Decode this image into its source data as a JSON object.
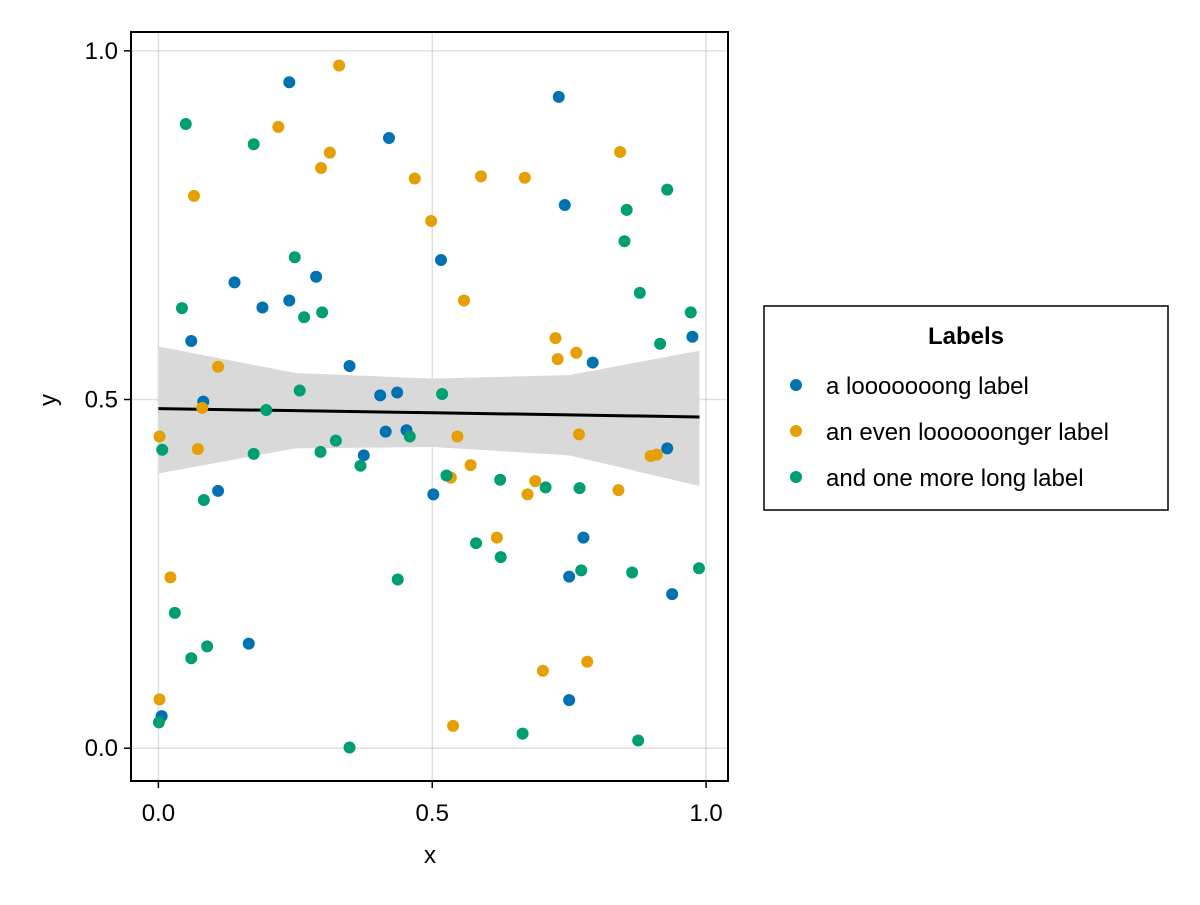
{
  "chart_data": {
    "type": "scatter",
    "xlabel": "x",
    "ylabel": "y",
    "xlim": [
      -0.05,
      1.04
    ],
    "ylim": [
      -0.047,
      1.027
    ],
    "x_ticks": [
      0.0,
      0.5,
      1.0
    ],
    "y_ticks": [
      0.0,
      0.5,
      1.0
    ],
    "x_tick_labels": [
      "0.0",
      "0.5",
      "1.0"
    ],
    "y_tick_labels": [
      "0.0",
      "0.5",
      "1.0"
    ],
    "grid": true,
    "legend": {
      "title": "Labels",
      "placement": "right",
      "entries": [
        "a looooooong label",
        "an even loooooonger label",
        "and one more long label"
      ]
    },
    "series": [
      {
        "name": "a looooooong label",
        "color": "#0072b2",
        "points": [
          [
            0.239,
            0.955
          ],
          [
            0.731,
            0.934
          ],
          [
            0.421,
            0.875
          ],
          [
            0.742,
            0.779
          ],
          [
            0.516,
            0.7
          ],
          [
            0.288,
            0.676
          ],
          [
            0.139,
            0.668
          ],
          [
            0.239,
            0.642
          ],
          [
            0.19,
            0.632
          ],
          [
            0.06,
            0.584
          ],
          [
            0.975,
            0.59
          ],
          [
            0.793,
            0.553
          ],
          [
            0.349,
            0.548
          ],
          [
            0.436,
            0.51
          ],
          [
            0.405,
            0.506
          ],
          [
            0.082,
            0.497
          ],
          [
            0.415,
            0.454
          ],
          [
            0.453,
            0.456
          ],
          [
            0.375,
            0.42
          ],
          [
            0.929,
            0.43
          ],
          [
            0.109,
            0.369
          ],
          [
            0.502,
            0.364
          ],
          [
            0.776,
            0.302
          ],
          [
            0.75,
            0.246
          ],
          [
            0.938,
            0.221
          ],
          [
            0.165,
            0.15
          ],
          [
            0.75,
            0.069
          ],
          [
            0.006,
            0.046
          ]
        ]
      },
      {
        "name": "an even loooooonger label",
        "color": "#e69f00",
        "points": [
          [
            0.33,
            0.979
          ],
          [
            0.219,
            0.891
          ],
          [
            0.313,
            0.854
          ],
          [
            0.297,
            0.832
          ],
          [
            0.468,
            0.817
          ],
          [
            0.589,
            0.82
          ],
          [
            0.669,
            0.818
          ],
          [
            0.843,
            0.855
          ],
          [
            0.065,
            0.792
          ],
          [
            0.498,
            0.756
          ],
          [
            0.558,
            0.642
          ],
          [
            0.725,
            0.588
          ],
          [
            0.729,
            0.558
          ],
          [
            0.763,
            0.567
          ],
          [
            0.109,
            0.547
          ],
          [
            0.08,
            0.488
          ],
          [
            0.002,
            0.447
          ],
          [
            0.072,
            0.429
          ],
          [
            0.546,
            0.447
          ],
          [
            0.768,
            0.45
          ],
          [
            0.57,
            0.406
          ],
          [
            0.899,
            0.419
          ],
          [
            0.91,
            0.421
          ],
          [
            0.534,
            0.388
          ],
          [
            0.688,
            0.383
          ],
          [
            0.674,
            0.364
          ],
          [
            0.84,
            0.37
          ],
          [
            0.618,
            0.302
          ],
          [
            0.022,
            0.245
          ],
          [
            0.702,
            0.111
          ],
          [
            0.783,
            0.124
          ],
          [
            0.002,
            0.07
          ],
          [
            0.538,
            0.032
          ]
        ]
      },
      {
        "name": "and one more long label",
        "color": "#009e73",
        "points": [
          [
            0.05,
            0.895
          ],
          [
            0.174,
            0.866
          ],
          [
            0.929,
            0.801
          ],
          [
            0.855,
            0.772
          ],
          [
            0.851,
            0.727
          ],
          [
            0.249,
            0.704
          ],
          [
            0.879,
            0.653
          ],
          [
            0.043,
            0.631
          ],
          [
            0.299,
            0.625
          ],
          [
            0.266,
            0.618
          ],
          [
            0.972,
            0.625
          ],
          [
            0.916,
            0.58
          ],
          [
            0.258,
            0.513
          ],
          [
            0.518,
            0.508
          ],
          [
            0.197,
            0.485
          ],
          [
            0.007,
            0.428
          ],
          [
            0.324,
            0.441
          ],
          [
            0.459,
            0.447
          ],
          [
            0.296,
            0.425
          ],
          [
            0.174,
            0.422
          ],
          [
            0.369,
            0.405
          ],
          [
            0.526,
            0.391
          ],
          [
            0.624,
            0.385
          ],
          [
            0.707,
            0.374
          ],
          [
            0.769,
            0.373
          ],
          [
            0.083,
            0.356
          ],
          [
            0.58,
            0.294
          ],
          [
            0.625,
            0.274
          ],
          [
            0.772,
            0.255
          ],
          [
            0.865,
            0.252
          ],
          [
            0.987,
            0.258
          ],
          [
            0.437,
            0.242
          ],
          [
            0.03,
            0.194
          ],
          [
            0.089,
            0.146
          ],
          [
            0.06,
            0.129
          ],
          [
            0.001,
            0.037
          ],
          [
            0.349,
            0.001
          ],
          [
            0.665,
            0.021
          ],
          [
            0.876,
            0.011
          ]
        ]
      }
    ],
    "regression": {
      "color": "#000000",
      "band_color": "#d9d9d9",
      "x": [
        0.0,
        0.25,
        0.5,
        0.75,
        0.988
      ],
      "y": [
        0.487,
        0.484,
        0.481,
        0.478,
        0.475
      ],
      "upper": [
        0.576,
        0.538,
        0.53,
        0.535,
        0.57
      ],
      "lower": [
        0.394,
        0.43,
        0.432,
        0.42,
        0.376
      ]
    }
  }
}
